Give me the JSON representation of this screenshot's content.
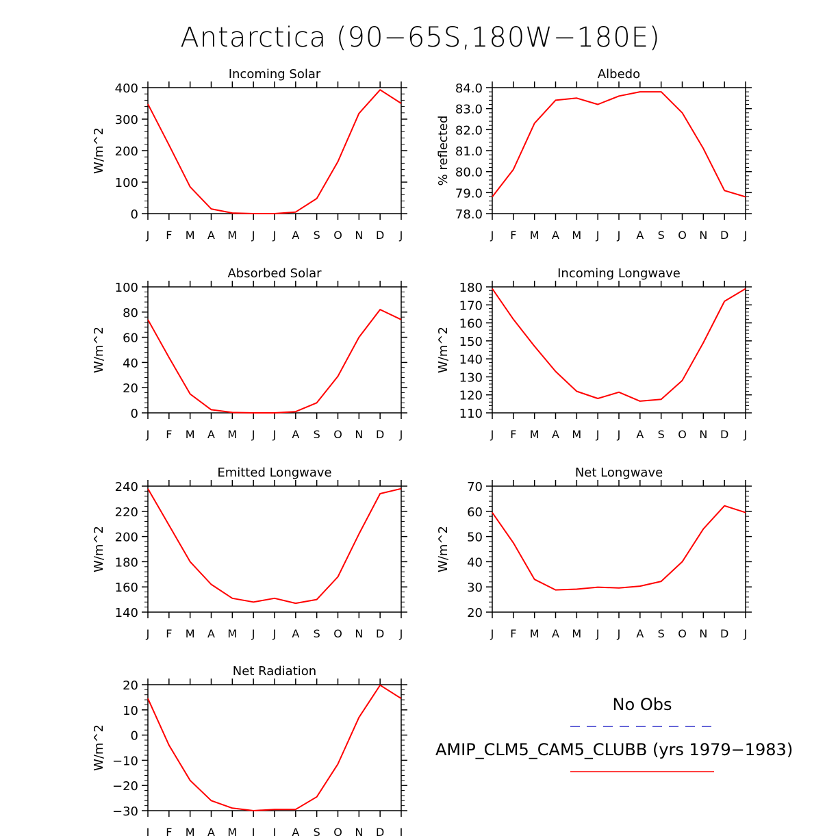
{
  "title": "Antarctica (90-65S,180W-180E)",
  "months": [
    "J",
    "F",
    "M",
    "A",
    "M",
    "J",
    "J",
    "A",
    "S",
    "O",
    "N",
    "D",
    "J"
  ],
  "line_color": "#ff0000",
  "obs_line_color": "#3333cc",
  "legend": {
    "obs_label": "No Obs",
    "model_label": "AMIP_CLM5_CAM5_CLUBB (yrs 1979-1983)"
  },
  "chart_data": [
    {
      "type": "line",
      "title": "Incoming Solar",
      "ylabel": "W/m^2",
      "ylim": [
        0,
        400
      ],
      "yticks": [
        0,
        100,
        200,
        300,
        400
      ],
      "ytick_labels": [
        "0",
        "100",
        "200",
        "300",
        "400"
      ],
      "x": [
        "J",
        "F",
        "M",
        "A",
        "M",
        "J",
        "J",
        "A",
        "S",
        "O",
        "N",
        "D",
        "J"
      ],
      "series": [
        {
          "values": [
            348,
            218,
            85,
            15,
            2,
            0,
            0,
            5,
            48,
            165,
            318,
            393,
            350
          ]
        }
      ]
    },
    {
      "type": "line",
      "title": "Albedo",
      "ylabel": "% reflected",
      "ylim": [
        78.0,
        84.0
      ],
      "yticks": [
        78,
        79,
        80,
        81,
        82,
        83,
        84
      ],
      "ytick_labels": [
        "78.0",
        "79.0",
        "80.0",
        "81.0",
        "82.0",
        "83.0",
        "84.0"
      ],
      "x": [
        "J",
        "F",
        "M",
        "A",
        "M",
        "J",
        "J",
        "A",
        "S",
        "O",
        "N",
        "D",
        "J"
      ],
      "series": [
        {
          "values": [
            78.8,
            80.1,
            82.3,
            83.4,
            83.5,
            83.2,
            83.6,
            83.8,
            83.8,
            82.8,
            81.1,
            79.1,
            78.8
          ]
        }
      ]
    },
    {
      "type": "line",
      "title": "Absorbed Solar",
      "ylabel": "W/m^2",
      "ylim": [
        0,
        100
      ],
      "yticks": [
        0,
        20,
        40,
        60,
        80,
        100
      ],
      "ytick_labels": [
        "0",
        "20",
        "40",
        "60",
        "80",
        "100"
      ],
      "x": [
        "J",
        "F",
        "M",
        "A",
        "M",
        "J",
        "J",
        "A",
        "S",
        "O",
        "N",
        "D",
        "J"
      ],
      "series": [
        {
          "values": [
            74,
            44,
            15,
            2.5,
            0.3,
            0,
            0,
            1,
            8,
            29,
            60,
            82,
            74
          ]
        }
      ]
    },
    {
      "type": "line",
      "title": "Incoming Longwave",
      "ylabel": "W/m^2",
      "ylim": [
        110,
        180
      ],
      "yticks": [
        110,
        120,
        130,
        140,
        150,
        160,
        170,
        180
      ],
      "ytick_labels": [
        "110",
        "120",
        "130",
        "140",
        "150",
        "160",
        "170",
        "180"
      ],
      "x": [
        "J",
        "F",
        "M",
        "A",
        "M",
        "J",
        "J",
        "A",
        "S",
        "O",
        "N",
        "D",
        "J"
      ],
      "series": [
        {
          "values": [
            179,
            162,
            147,
            133,
            122,
            118,
            121.5,
            116.5,
            117.5,
            128,
            149,
            172,
            179
          ]
        }
      ]
    },
    {
      "type": "line",
      "title": "Emitted Longwave",
      "ylabel": "W/m^2",
      "ylim": [
        140,
        240
      ],
      "yticks": [
        140,
        160,
        180,
        200,
        220,
        240
      ],
      "ytick_labels": [
        "140",
        "160",
        "180",
        "200",
        "220",
        "240"
      ],
      "x": [
        "J",
        "F",
        "M",
        "A",
        "M",
        "J",
        "J",
        "A",
        "S",
        "O",
        "N",
        "D",
        "J"
      ],
      "series": [
        {
          "values": [
            238,
            209,
            180,
            162,
            151,
            148,
            151,
            147,
            150,
            168,
            202,
            234,
            238
          ]
        }
      ]
    },
    {
      "type": "line",
      "title": "Net Longwave",
      "ylabel": "W/m^2",
      "ylim": [
        20,
        70
      ],
      "yticks": [
        20,
        30,
        40,
        50,
        60,
        70
      ],
      "ytick_labels": [
        "20",
        "30",
        "40",
        "50",
        "60",
        "70"
      ],
      "x": [
        "J",
        "F",
        "M",
        "A",
        "M",
        "J",
        "J",
        "A",
        "S",
        "O",
        "N",
        "D",
        "J"
      ],
      "series": [
        {
          "values": [
            59.5,
            47.5,
            33,
            28.8,
            29.1,
            29.9,
            29.6,
            30.3,
            32.2,
            40,
            53,
            62.2,
            59.5
          ]
        }
      ]
    },
    {
      "type": "line",
      "title": "Net Radiation",
      "ylabel": "W/m^2",
      "ylim": [
        -30,
        20
      ],
      "yticks": [
        -30,
        -20,
        -10,
        0,
        10,
        20
      ],
      "ytick_labels": [
        "-30",
        "-20",
        "-10",
        "0",
        "10",
        "20"
      ],
      "x": [
        "J",
        "F",
        "M",
        "A",
        "M",
        "J",
        "J",
        "A",
        "S",
        "O",
        "N",
        "D",
        "J"
      ],
      "series": [
        {
          "values": [
            14.5,
            -4,
            -18,
            -26,
            -29,
            -30,
            -29.5,
            -29.5,
            -24.5,
            -11.5,
            7,
            19.8,
            14.5
          ]
        }
      ]
    }
  ]
}
